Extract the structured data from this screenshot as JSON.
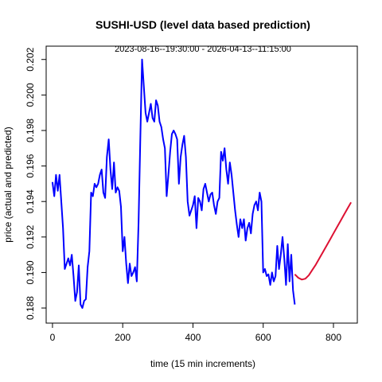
{
  "chart_data": {
    "type": "line",
    "title": "SUSHI-USD (level data based prediction)",
    "subtitle": "2023-08-16--19:30:00  -  2026-04-13--11:15:00",
    "xlabel": "time (15 min increments)",
    "ylabel": "price (actual and predicted)",
    "xlim": [
      -18,
      868
    ],
    "ylim": [
      0.18715,
      0.20275
    ],
    "x_ticks": [
      0,
      200,
      400,
      600,
      800
    ],
    "y_ticks": [
      0.188,
      0.19,
      0.192,
      0.194,
      0.196,
      0.198,
      0.2,
      0.202
    ],
    "y_tick_labels": [
      "0.188",
      "0.190",
      "0.192",
      "0.194",
      "0.196",
      "0.198",
      "0.200",
      "0.202"
    ],
    "grid": false,
    "series": [
      {
        "color": "#0000ff",
        "x": [
          0,
          5,
          10,
          15,
          20,
          25,
          30,
          35,
          40,
          45,
          50,
          55,
          60,
          65,
          70,
          75,
          80,
          85,
          90,
          95,
          100,
          105,
          110,
          115,
          120,
          125,
          130,
          135,
          140,
          145,
          150,
          155,
          160,
          165,
          170,
          175,
          180,
          185,
          190,
          195,
          200,
          205,
          210,
          215,
          220,
          225,
          230,
          235,
          240,
          245,
          250,
          255,
          260,
          265,
          270,
          275,
          280,
          285,
          290,
          295,
          300,
          305,
          310,
          315,
          320,
          325,
          330,
          335,
          340,
          345,
          350,
          355,
          360,
          365,
          370,
          375,
          380,
          385,
          390,
          395,
          400,
          405,
          410,
          415,
          420,
          425,
          430,
          435,
          440,
          445,
          450,
          455,
          460,
          465,
          470,
          475,
          480,
          485,
          490,
          495,
          500,
          505,
          510,
          515,
          520,
          525,
          530,
          535,
          540,
          545,
          550,
          555,
          560,
          565,
          570,
          575,
          580,
          585,
          590,
          595,
          600,
          605,
          610,
          615,
          620,
          625,
          630,
          635,
          640,
          645,
          650,
          655,
          660,
          665,
          670,
          675,
          680,
          685,
          690
        ],
        "y": [
          0.1951,
          0.1943,
          0.1955,
          0.1946,
          0.1955,
          0.194,
          0.1925,
          0.1902,
          0.1905,
          0.1908,
          0.1904,
          0.191,
          0.1898,
          0.1884,
          0.1889,
          0.1904,
          0.1882,
          0.188,
          0.1884,
          0.1885,
          0.1903,
          0.1912,
          0.1945,
          0.1943,
          0.195,
          0.1948,
          0.195,
          0.1955,
          0.1958,
          0.1945,
          0.1942,
          0.1965,
          0.1975,
          0.1958,
          0.1947,
          0.1962,
          0.1945,
          0.1948,
          0.1946,
          0.1937,
          0.1912,
          0.192,
          0.1905,
          0.1894,
          0.1905,
          0.1898,
          0.19,
          0.1903,
          0.1895,
          0.1928,
          0.1975,
          0.202,
          0.2005,
          0.199,
          0.1985,
          0.199,
          0.1995,
          0.1987,
          0.1985,
          0.1997,
          0.1994,
          0.1985,
          0.1982,
          0.1975,
          0.197,
          0.1943,
          0.1955,
          0.1968,
          0.1978,
          0.198,
          0.1978,
          0.1975,
          0.195,
          0.1965,
          0.1972,
          0.1977,
          0.1965,
          0.194,
          0.1932,
          0.1935,
          0.1938,
          0.1943,
          0.1925,
          0.1942,
          0.194,
          0.1935,
          0.1947,
          0.195,
          0.1945,
          0.194,
          0.1944,
          0.1945,
          0.1938,
          0.1933,
          0.194,
          0.1942,
          0.1968,
          0.1963,
          0.197,
          0.1958,
          0.195,
          0.1962,
          0.1955,
          0.1945,
          0.1935,
          0.1927,
          0.192,
          0.193,
          0.1925,
          0.193,
          0.1918,
          0.1925,
          0.1928,
          0.1922,
          0.1933,
          0.1938,
          0.194,
          0.1935,
          0.1945,
          0.194,
          0.19,
          0.1902,
          0.1898,
          0.1899,
          0.1893,
          0.19,
          0.1895,
          0.1898,
          0.1915,
          0.1902,
          0.191,
          0.192,
          0.1908,
          0.1893,
          0.1916,
          0.1895,
          0.191,
          0.189,
          0.1882
        ]
      },
      {
        "color": "#dd1133",
        "x": [
          690,
          700,
          710,
          720,
          730,
          740,
          750,
          760,
          770,
          780,
          790,
          800,
          810,
          820,
          830,
          840,
          850
        ],
        "y": [
          0.1899,
          0.1897,
          0.1896,
          0.18965,
          0.18985,
          0.19015,
          0.19045,
          0.1908,
          0.19115,
          0.1915,
          0.19185,
          0.1922,
          0.19255,
          0.1929,
          0.19325,
          0.1936,
          0.19395
        ]
      }
    ]
  }
}
